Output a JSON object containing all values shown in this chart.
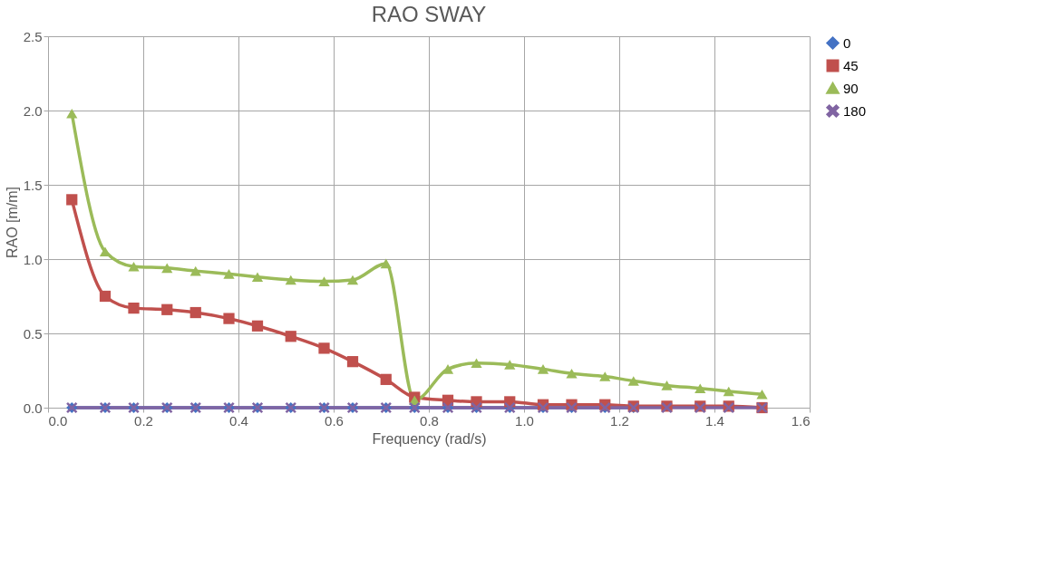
{
  "chart_data": {
    "type": "line",
    "title": "RAO  SWAY",
    "xlabel": "Frequency (rad/s)",
    "ylabel": "RAO [m/m]",
    "x": [
      0.05,
      0.12,
      0.18,
      0.25,
      0.31,
      0.38,
      0.44,
      0.51,
      0.58,
      0.64,
      0.71,
      0.77,
      0.84,
      0.9,
      0.97,
      1.04,
      1.1,
      1.17,
      1.23,
      1.3,
      1.37,
      1.43,
      1.5
    ],
    "series": [
      {
        "name": "0",
        "color": "#4472c4",
        "marker": "diamond",
        "values": [
          0,
          0,
          0,
          0,
          0,
          0,
          0,
          0,
          0,
          0,
          0,
          0,
          0,
          0,
          0,
          0,
          0,
          0,
          0,
          null,
          null,
          null,
          null
        ]
      },
      {
        "name": "45",
        "color": "#c0504d",
        "marker": "square",
        "values": [
          1.4,
          0.75,
          0.67,
          0.66,
          0.64,
          0.6,
          0.55,
          0.48,
          0.4,
          0.31,
          0.19,
          0.07,
          0.05,
          0.04,
          0.04,
          0.02,
          0.02,
          0.02,
          0.01,
          0.01,
          0.01,
          0.01,
          0.0
        ]
      },
      {
        "name": "90",
        "color": "#9bbb59",
        "marker": "triangle",
        "values": [
          1.98,
          1.05,
          0.95,
          0.94,
          0.92,
          0.9,
          0.88,
          0.86,
          0.85,
          0.86,
          0.97,
          0.05,
          0.26,
          0.3,
          0.29,
          0.26,
          0.23,
          0.21,
          0.18,
          0.15,
          0.13,
          0.11,
          0.09
        ]
      },
      {
        "name": "180",
        "color": "#8064a2",
        "marker": "cross",
        "values": [
          0,
          0,
          0,
          0,
          0,
          0,
          0,
          0,
          0,
          0,
          0,
          0,
          0,
          0,
          0,
          0,
          0,
          0,
          0,
          0,
          0,
          0,
          0
        ]
      }
    ],
    "xlim": [
      0.0,
      1.6
    ],
    "xticks": [
      {
        "value": 0,
        "label": "0.0"
      },
      0.2,
      0.4,
      0.6,
      0.8,
      {
        "value": 1,
        "label": "1.0"
      },
      1.2,
      1.4,
      1.6
    ],
    "ylim": [
      0.0,
      2.5
    ],
    "yticks": [
      {
        "value": 0,
        "label": "0.0"
      },
      0.5,
      {
        "value": 1,
        "label": "1.0"
      },
      1.5,
      {
        "value": 2,
        "label": "2.0"
      },
      2.5
    ],
    "grid": true,
    "legend": "right",
    "line_style": "solid"
  }
}
